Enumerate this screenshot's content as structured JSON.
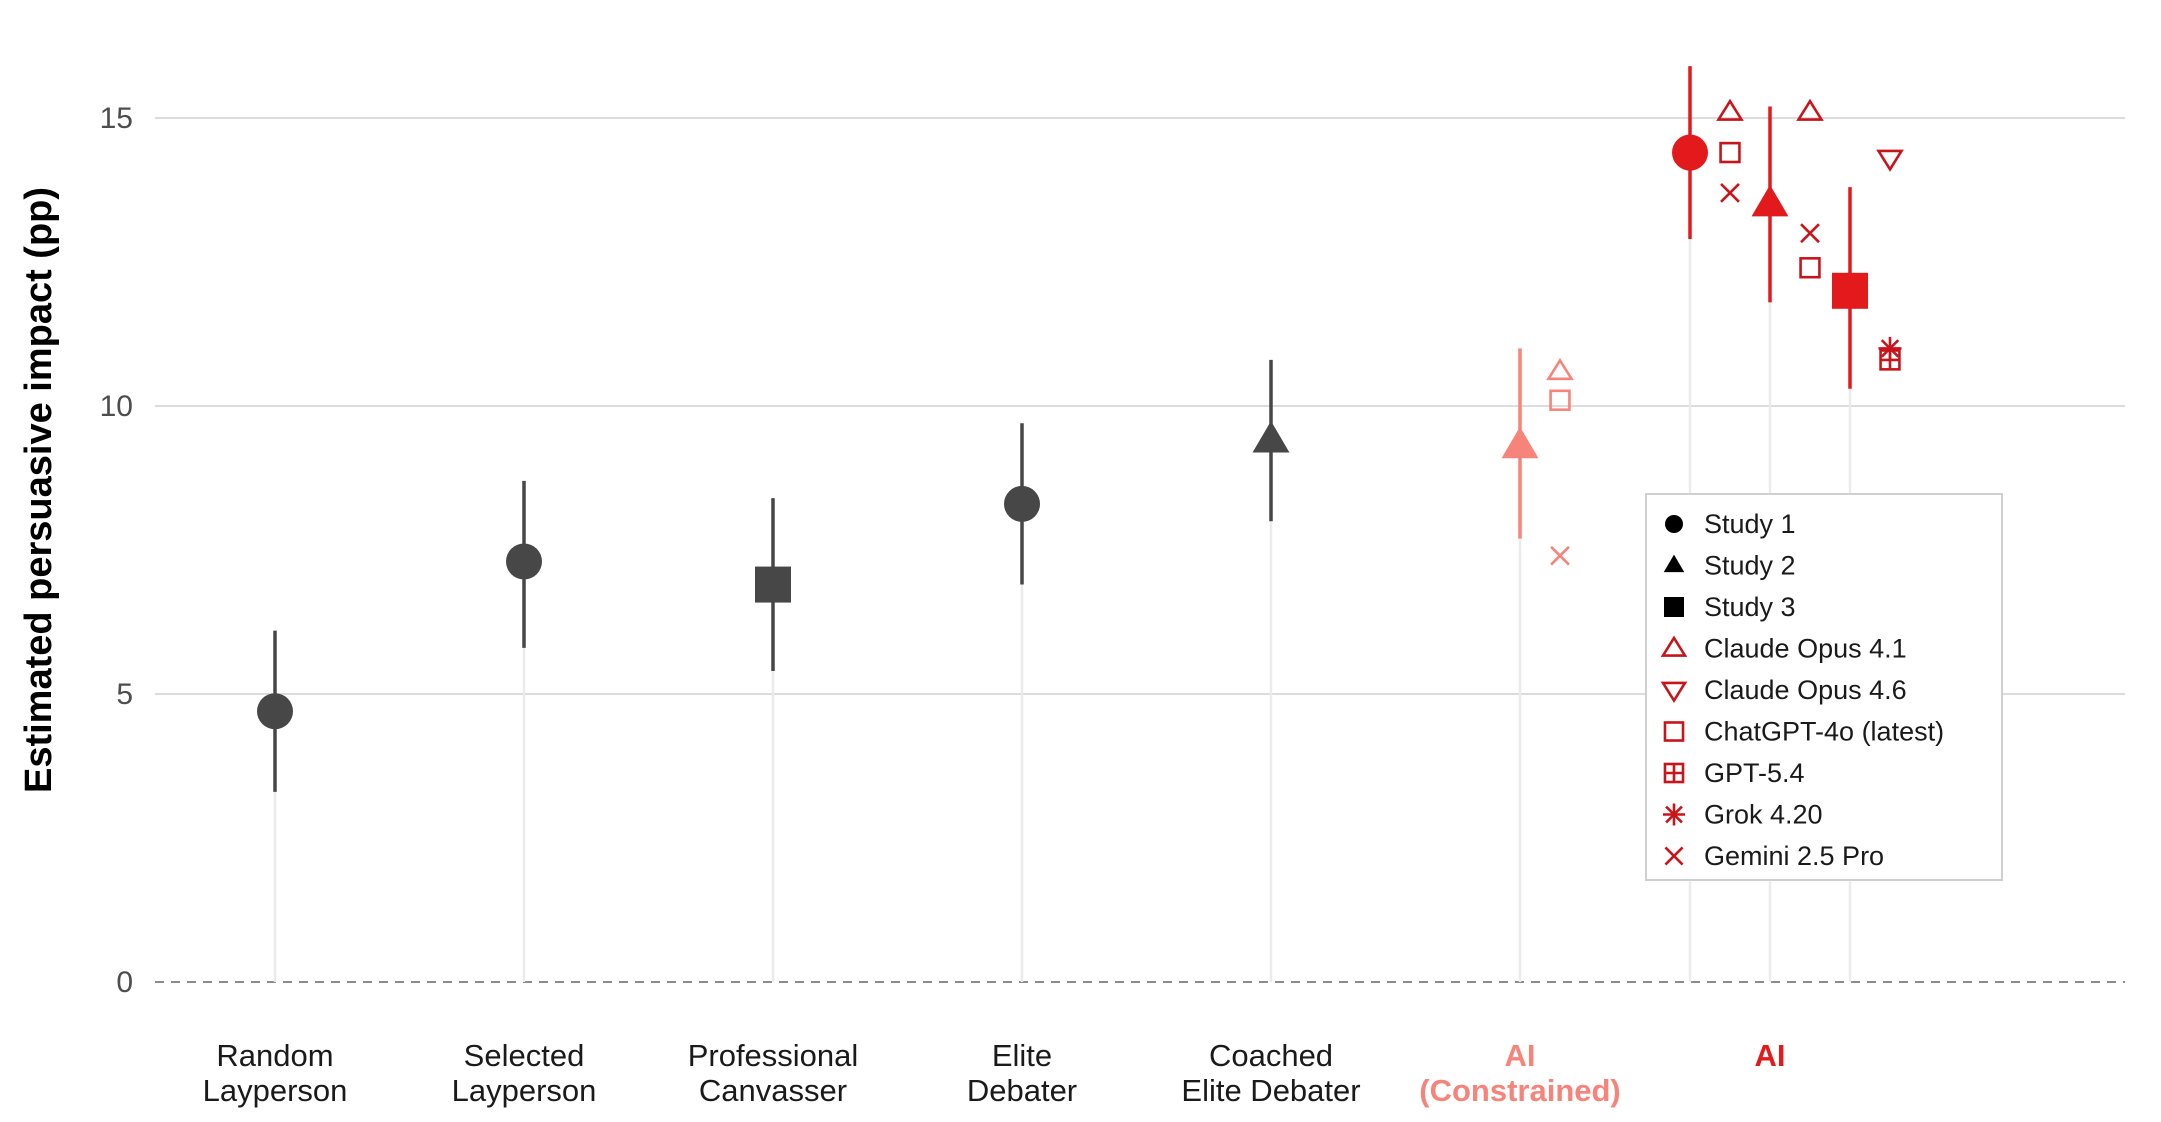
{
  "chart_data": {
    "type": "scatter",
    "ylabel": "Estimated persuasive impact (pp)",
    "xlabel": "",
    "title": "",
    "ylim": [
      -1.5,
      17
    ],
    "yticks": [
      0,
      5,
      10,
      15
    ],
    "grid": true,
    "legend_position": "right",
    "colors": {
      "human": "#474747",
      "ai_constrained": "#f7847a",
      "ai": "#e31a1c",
      "ai_model_markers": "#c8151b",
      "gridline": "#dcdcdc",
      "dropline": "#ebebeb",
      "zero_line": "#8c8c8c"
    },
    "categories": [
      {
        "label": [
          "Random",
          "Layperson"
        ],
        "color_key": "human"
      },
      {
        "label": [
          "Selected",
          "Layperson"
        ],
        "color_key": "human"
      },
      {
        "label": [
          "Professional",
          "Canvasser"
        ],
        "color_key": "human"
      },
      {
        "label": [
          "Elite",
          "Debater"
        ],
        "color_key": "human"
      },
      {
        "label": [
          "Coached",
          "Elite Debater"
        ],
        "color_key": "human"
      },
      {
        "label": [
          "AI",
          "(Constrained)"
        ],
        "color_key": "ai_constrained",
        "bold": true
      },
      {
        "label": [
          "AI"
        ],
        "color_key": "ai",
        "bold": true
      }
    ],
    "estimates": [
      {
        "category": 0,
        "study": "Study 1",
        "value": 4.7,
        "ci": [
          3.3,
          6.1
        ]
      },
      {
        "category": 1,
        "study": "Study 1",
        "value": 7.3,
        "ci": [
          5.8,
          8.7
        ]
      },
      {
        "category": 2,
        "study": "Study 3",
        "value": 6.9,
        "ci": [
          5.4,
          8.4
        ]
      },
      {
        "category": 3,
        "study": "Study 1",
        "value": 8.3,
        "ci": [
          6.9,
          9.7
        ]
      },
      {
        "category": 4,
        "study": "Study 2",
        "value": 9.4,
        "ci": [
          8.0,
          10.8
        ]
      },
      {
        "category": 5,
        "study": "Study 2",
        "value": 9.3,
        "ci": [
          7.7,
          11.0
        ]
      },
      {
        "category": 6,
        "study": "Study 1",
        "value": 14.4,
        "ci": [
          12.9,
          15.9
        ]
      },
      {
        "category": 6,
        "study": "Study 2",
        "value": 13.5,
        "ci": [
          11.8,
          15.2
        ]
      },
      {
        "category": 6,
        "study": "Study 3",
        "value": 12.0,
        "ci": [
          10.3,
          13.8
        ]
      }
    ],
    "model_points": [
      {
        "category": 5,
        "study": "Study 2",
        "model": "Claude Opus 4.1",
        "value": 10.6
      },
      {
        "category": 5,
        "study": "Study 2",
        "model": "ChatGPT-4o (latest)",
        "value": 10.1
      },
      {
        "category": 5,
        "study": "Study 2",
        "model": "Gemini 2.5 Pro",
        "value": 7.4
      },
      {
        "category": 6,
        "study": "Study 1",
        "model": "Claude Opus 4.1",
        "value": 15.1
      },
      {
        "category": 6,
        "study": "Study 1",
        "model": "ChatGPT-4o (latest)",
        "value": 14.4
      },
      {
        "category": 6,
        "study": "Study 1",
        "model": "Gemini 2.5 Pro",
        "value": 13.7
      },
      {
        "category": 6,
        "study": "Study 2",
        "model": "Claude Opus 4.1",
        "value": 15.1
      },
      {
        "category": 6,
        "study": "Study 2",
        "model": "Gemini 2.5 Pro",
        "value": 13.0
      },
      {
        "category": 6,
        "study": "Study 2",
        "model": "ChatGPT-4o (latest)",
        "value": 12.4
      },
      {
        "category": 6,
        "study": "Study 3",
        "model": "Claude Opus 4.6",
        "value": 14.3
      },
      {
        "category": 6,
        "study": "Study 3",
        "model": "Grok 4.20",
        "value": 11.0
      },
      {
        "category": 6,
        "study": "Study 3",
        "model": "GPT-5.4",
        "value": 10.8
      }
    ],
    "legend": [
      {
        "label": "Study 1",
        "shape": "circle"
      },
      {
        "label": "Study 2",
        "shape": "triangle"
      },
      {
        "label": "Study 3",
        "shape": "square"
      },
      {
        "label": "Claude Opus 4.1",
        "shape": "triangle-open"
      },
      {
        "label": "Claude Opus 4.6",
        "shape": "triangle-down-open"
      },
      {
        "label": "ChatGPT-4o (latest)",
        "shape": "square-open"
      },
      {
        "label": "GPT-5.4",
        "shape": "square-plus"
      },
      {
        "label": "Grok 4.20",
        "shape": "asterisk"
      },
      {
        "label": "Gemini 2.5 Pro",
        "shape": "cross"
      }
    ]
  }
}
